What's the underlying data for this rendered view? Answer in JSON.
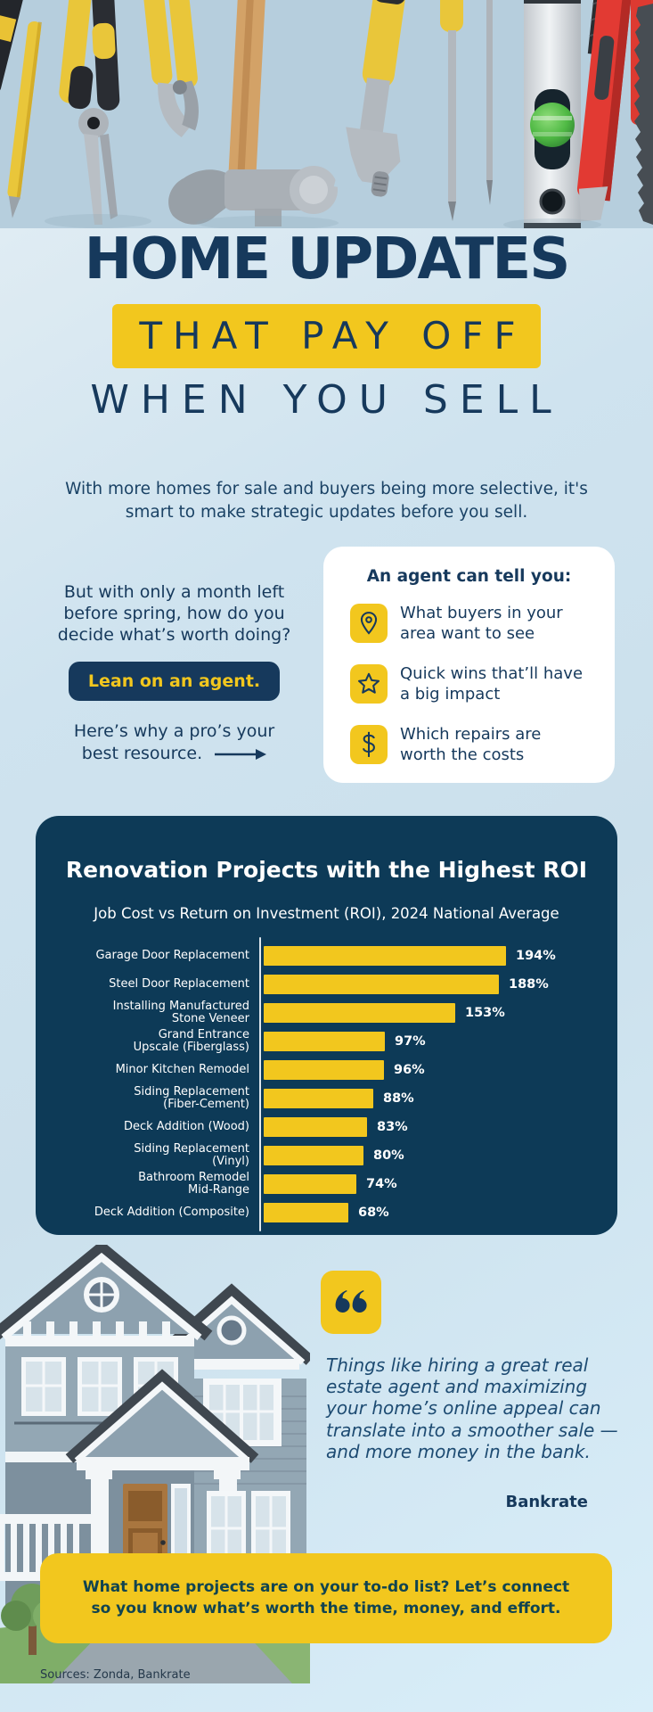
{
  "header": {
    "title_line1": "HOME UPDATES",
    "title_line2": "THAT PAY OFF",
    "title_line3": "WHEN YOU SELL",
    "intro": "With more homes for sale and buyers being more selective, it's smart to make strategic updates before you sell."
  },
  "agent_section": {
    "question": "But with only a month left before spring, how do you decide what’s worth doing?",
    "button_label": "Lean on an agent.",
    "caption": "Here’s why a pro’s your best resource.",
    "card_title": "An agent can tell you:",
    "items": [
      {
        "icon": "location-pin-icon",
        "text": "What buyers in your area want to see"
      },
      {
        "icon": "star-icon",
        "text": "Quick wins that’ll have a big impact"
      },
      {
        "icon": "dollar-icon",
        "text": "Which repairs are worth the costs"
      }
    ]
  },
  "chart_data": {
    "type": "bar",
    "orientation": "horizontal",
    "title": "Renovation Projects with the Highest ROI",
    "subtitle": "Job Cost vs Return on Investment (ROI), 2024 National Average",
    "categories": [
      "Garage Door Replacement",
      "Steel Door Replacement",
      "Installing Manufactured\nStone Veneer",
      "Grand Entrance\nUpscale (Fiberglass)",
      "Minor Kitchen Remodel",
      "Siding Replacement\n(Fiber-Cement)",
      "Deck Addition (Wood)",
      "Siding Replacement\n(Vinyl)",
      "Bathroom Remodel\nMid-Range",
      "Deck Addition (Composite)"
    ],
    "values": [
      194,
      188,
      153,
      97,
      96,
      88,
      83,
      80,
      74,
      68
    ],
    "unit": "%",
    "xlim": [
      0,
      194
    ],
    "bar_color": "#F2C71E",
    "grid": false,
    "legend": false
  },
  "quote": {
    "text": "Things like hiring a great real estate agent and maximizing your home’s online appeal can translate into a smoother sale — and more money in the bank.",
    "attribution": "Bankrate"
  },
  "cta": {
    "line1": "What home projects are on your to-do list? Let’s connect",
    "line2": "so you know what’s worth the time, money, and effort."
  },
  "footer": {
    "sources": "Sources: Zonda, Bankrate"
  },
  "colors": {
    "navy": "#16395c",
    "chart-navy": "#0d3a57",
    "yellow": "#F2C71E",
    "cta-text": "#114450",
    "quote-text": "#1d4b72",
    "axis": "#dfe7ed",
    "tools-bg": "#b6cedd"
  }
}
